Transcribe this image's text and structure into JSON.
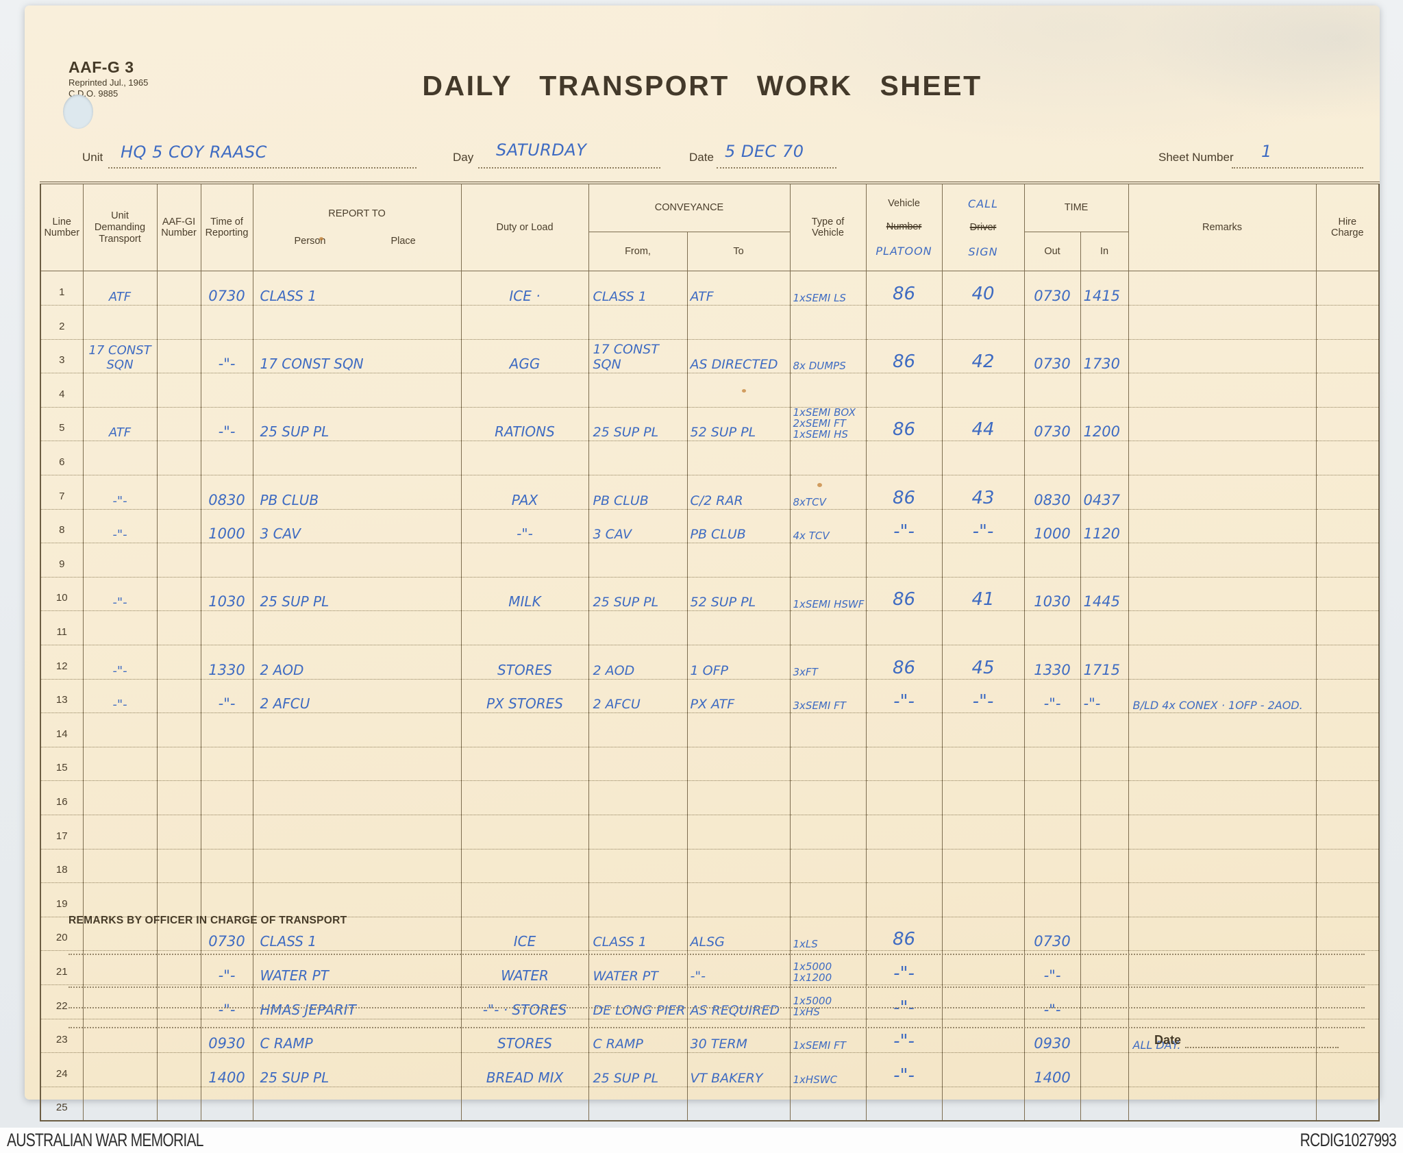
{
  "page": {
    "form_code": "AAF-G 3",
    "form_note1": "Reprinted Jul., 1965",
    "form_note2": "C.D.O. 9885",
    "title": "DAILY TRANSPORT WORK SHEET",
    "fields": {
      "unit_label": "Unit",
      "unit_value": "HQ 5 COY RAASC",
      "day_label": "Day",
      "day_value": "SATURDAY",
      "date_label": "Date",
      "date_value": "5 DEC 70",
      "sheet_label": "Sheet Number",
      "sheet_value": "1"
    },
    "remarks_heading": "REMARKS BY OFFICER IN CHARGE OF TRANSPORT",
    "bottom_date_label": "Date",
    "footer": {
      "left": "AUSTRALIAN WAR MEMORIAL",
      "right": "RCDIG1027993"
    },
    "colors": {
      "ink_blue": "#3e6bc2",
      "paper": "#f8edd5",
      "printed": "#453a27"
    }
  },
  "table": {
    "headers": {
      "line": "Line\nNumber",
      "unit": "Unit\nDemanding\nTransport",
      "aafgi": "AAF-GI\nNumber",
      "time_of": "Time of\nReporting",
      "report_to": "REPORT TO",
      "person": "Person",
      "place": "Place",
      "duty": "Duty or Load",
      "conveyance": "CONVEYANCE",
      "from": "From,",
      "to": "To",
      "type": "Type of\nVehicle",
      "vehicle": "Vehicle",
      "vehicle_struck": "Number",
      "vehicle_hw": "PLATOON",
      "call_hw_top": "CALL",
      "driver_struck": "Driver",
      "call_hw_bottom": "SIGN",
      "time": "TIME",
      "out": "Out",
      "in": "In",
      "remarks": "Remarks",
      "hire": "Hire\nCharge"
    },
    "rows": [
      {
        "n": "1",
        "unit": "ATF",
        "time": "0730",
        "report": "CLASS 1",
        "duty": "ICE ·",
        "from": "CLASS 1",
        "to": "ATF",
        "type": "1xSEMI LS",
        "platoon": "86",
        "call": "40",
        "out": "0730",
        "in": "1415"
      },
      {
        "n": "2"
      },
      {
        "n": "3",
        "unit": "17 CONST SQN",
        "time": "-\"-",
        "report": "17 CONST SQN",
        "duty": "AGG",
        "from": "17 CONST SQN",
        "to": "AS DIRECTED",
        "type": "8x DUMPS",
        "platoon": "86",
        "call": "42",
        "out": "0730",
        "in": "1730"
      },
      {
        "n": "4"
      },
      {
        "n": "5",
        "unit": "ATF",
        "time": "-\"-",
        "report": "25 SUP PL",
        "duty": "RATIONS",
        "from": "25 SUP PL",
        "to": "52 SUP PL",
        "type": "1xSEMI BOX\n2xSEMI FT\n1xSEMI HS",
        "platoon": "86",
        "call": "44",
        "out": "0730",
        "in": "1200"
      },
      {
        "n": "6"
      },
      {
        "n": "7",
        "unit": "-\"-",
        "time": "0830",
        "report": "PB CLUB",
        "duty": "PAX",
        "from": "PB CLUB",
        "to": "C/2 RAR",
        "type": "8xTCV",
        "platoon": "86",
        "call": "43",
        "out": "0830",
        "in": "0437"
      },
      {
        "n": "8",
        "unit": "-\"-",
        "time": "1000",
        "report": "3 CAV",
        "duty": "-\"-",
        "from": "3 CAV",
        "to": "PB CLUB",
        "type": "4x TCV",
        "platoon": "-\"-",
        "call": "-\"-",
        "out": "1000",
        "in": "1120"
      },
      {
        "n": "9"
      },
      {
        "n": "10",
        "unit": "-\"-",
        "time": "1030",
        "report": "25 SUP PL",
        "duty": "MILK",
        "from": "25 SUP PL",
        "to": "52 SUP PL",
        "type": "1xSEMI HSWF",
        "platoon": "86",
        "call": "41",
        "out": "1030",
        "in": "1445"
      },
      {
        "n": "11"
      },
      {
        "n": "12",
        "unit": "-\"-",
        "time": "1330",
        "report": "2 AOD",
        "duty": "STORES",
        "from": "2 AOD",
        "to": "1 OFP",
        "type": "3xFT",
        "platoon": "86",
        "call": "45",
        "out": "1330",
        "in": "1715"
      },
      {
        "n": "13",
        "unit": "-\"-",
        "time": "-\"-",
        "report": "2 AFCU",
        "duty": "PX STORES",
        "from": "2 AFCU",
        "to": "PX ATF",
        "type": "3xSEMI FT",
        "platoon": "-\"-",
        "call": "-\"-",
        "out": "-\"-",
        "in": "-\"-",
        "remarks": "B/LD 4x CONEX · 1OFP - 2AOD."
      },
      {
        "n": "14"
      },
      {
        "n": "15"
      },
      {
        "n": "16"
      },
      {
        "n": "17"
      },
      {
        "n": "18"
      },
      {
        "n": "19"
      },
      {
        "n": "20",
        "time": "0730",
        "report": "CLASS 1",
        "duty": "ICE",
        "from": "CLASS 1",
        "to": "ALSG",
        "type": "1xLS",
        "platoon": "86",
        "out": "0730"
      },
      {
        "n": "21",
        "time": "-\"-",
        "report": "WATER PT",
        "duty": "WATER",
        "from": "WATER PT",
        "to": "-\"-",
        "type": "1x5000\n1x1200",
        "platoon": "-\"-",
        "out": "-\"-"
      },
      {
        "n": "22",
        "time": "-\"-",
        "report": "HMAS JEPARIT",
        "duty": "-\"- · STORES",
        "from": "DE LONG PIER",
        "to": "AS REQUIRED",
        "type": "1x5000\n1xHS",
        "platoon": "-\"-",
        "out": "-\"-"
      },
      {
        "n": "23",
        "time": "0930",
        "report": "C RAMP",
        "duty": "STORES",
        "from": "C RAMP",
        "to": "30 TERM",
        "type": "1xSEMI FT",
        "platoon": "-\"-",
        "out": "0930",
        "remarks": "ALL DAY."
      },
      {
        "n": "24",
        "time": "1400",
        "report": "25 SUP PL",
        "duty": "BREAD MIX",
        "from": "25 SUP PL",
        "to": "VT BAKERY",
        "type": "1xHSWC",
        "platoon": "-\"-",
        "out": "1400"
      },
      {
        "n": "25"
      }
    ]
  }
}
